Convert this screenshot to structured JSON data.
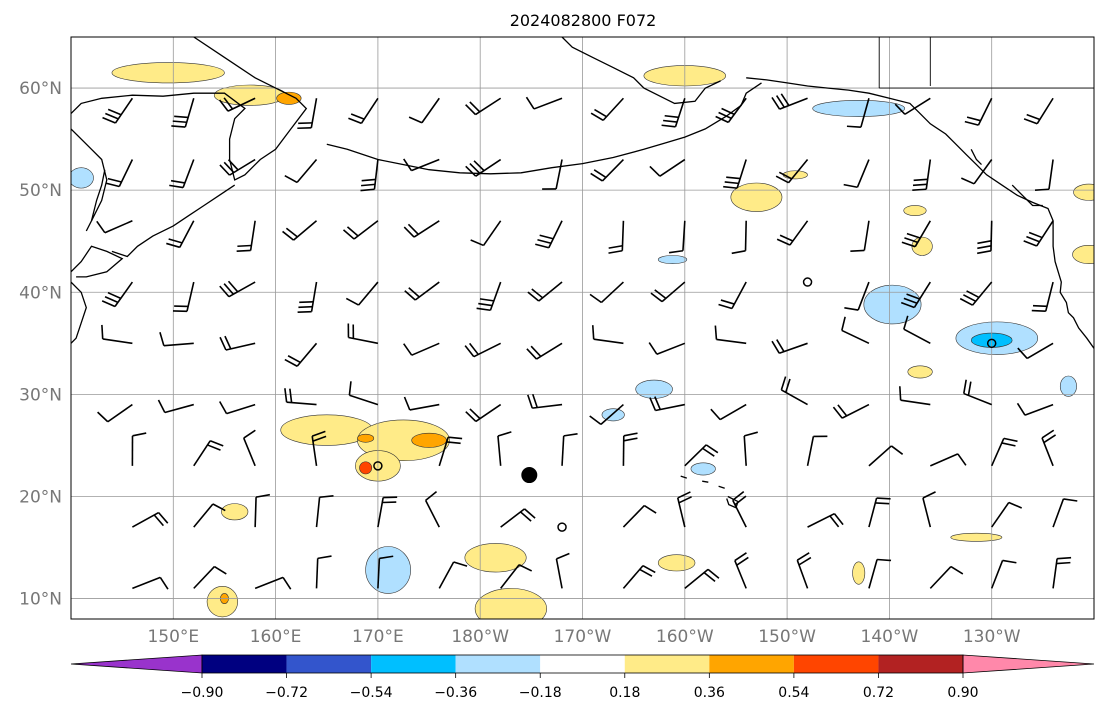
{
  "title": "2024082800 F072",
  "map": {
    "lon_range": [
      140,
      240
    ],
    "lat_range": [
      8,
      65
    ],
    "grid": true,
    "lat_ticks": [
      {
        "value": 10,
        "label": "10°N"
      },
      {
        "value": 20,
        "label": "20°N"
      },
      {
        "value": 30,
        "label": "30°N"
      },
      {
        "value": 40,
        "label": "40°N"
      },
      {
        "value": 50,
        "label": "50°N"
      },
      {
        "value": 60,
        "label": "60°N"
      }
    ],
    "lon_ticks": [
      {
        "value": 150,
        "label": "150°E"
      },
      {
        "value": 160,
        "label": "160°E"
      },
      {
        "value": 170,
        "label": "170°E"
      },
      {
        "value": 180,
        "label": "180°W"
      },
      {
        "value": 190,
        "label": "170°W"
      },
      {
        "value": 200,
        "label": "160°W"
      },
      {
        "value": 210,
        "label": "150°W"
      },
      {
        "value": 220,
        "label": "140°W"
      },
      {
        "value": 230,
        "label": "130°W"
      }
    ],
    "marker": {
      "lon": 184.8,
      "lat": 22.1
    }
  },
  "colorbar": {
    "levels": [
      "−0.90",
      "−0.72",
      "−0.54",
      "−0.36",
      "−0.18",
      "0.18",
      "0.36",
      "0.54",
      "0.72",
      "0.90"
    ],
    "colors": [
      "#9933cc",
      "#000080",
      "#3355cc",
      "#00bfff",
      "#b0e0ff",
      "#ffffff",
      "#ffeb88",
      "#ffa500",
      "#ff4500",
      "#b22222",
      "#ff88aa"
    ]
  },
  "anomaly_regions": [
    {
      "level": "pos1",
      "color": "#ffeb88",
      "lon": 149.5,
      "lat": 61.5,
      "rx": 5.5,
      "ry": 1.0
    },
    {
      "level": "pos1",
      "color": "#ffeb88",
      "lon": 157.5,
      "lat": 59.3,
      "rx": 3.5,
      "ry": 1.0
    },
    {
      "level": "pos2",
      "color": "#ffa500",
      "lon": 161.3,
      "lat": 59.0,
      "rx": 1.2,
      "ry": 0.6
    },
    {
      "level": "pos1",
      "color": "#ffeb88",
      "lon": 200.0,
      "lat": 61.2,
      "rx": 4.0,
      "ry": 1.0
    },
    {
      "level": "neg1",
      "color": "#b0e0ff",
      "lon": 217.0,
      "lat": 58.0,
      "rx": 4.5,
      "ry": 0.8
    },
    {
      "level": "neg1",
      "color": "#b0e0ff",
      "lon": 141.0,
      "lat": 51.2,
      "rx": 1.2,
      "ry": 1.0
    },
    {
      "level": "pos1",
      "color": "#ffeb88",
      "lon": 207.0,
      "lat": 49.3,
      "rx": 2.5,
      "ry": 1.4
    },
    {
      "level": "pos1",
      "color": "#ffeb88",
      "lon": 210.8,
      "lat": 51.5,
      "rx": 1.2,
      "ry": 0.4
    },
    {
      "level": "pos1",
      "color": "#ffeb88",
      "lon": 222.5,
      "lat": 48.0,
      "rx": 1.1,
      "ry": 0.5
    },
    {
      "level": "pos1",
      "color": "#ffeb88",
      "lon": 223.2,
      "lat": 44.5,
      "rx": 1.0,
      "ry": 0.9
    },
    {
      "level": "neg1",
      "color": "#b0e0ff",
      "lon": 198.8,
      "lat": 43.2,
      "rx": 1.4,
      "ry": 0.4
    },
    {
      "level": "neg1",
      "color": "#b0e0ff",
      "lon": 220.3,
      "lat": 38.8,
      "rx": 2.8,
      "ry": 1.9
    },
    {
      "level": "neg1",
      "color": "#b0e0ff",
      "lon": 230.5,
      "lat": 35.5,
      "rx": 4.0,
      "ry": 1.6
    },
    {
      "level": "neg2",
      "color": "#00bfff",
      "lon": 230.0,
      "lat": 35.3,
      "rx": 2.0,
      "ry": 0.7
    },
    {
      "level": "pos1",
      "color": "#ffeb88",
      "lon": 223.0,
      "lat": 32.2,
      "rx": 1.2,
      "ry": 0.6
    },
    {
      "level": "neg1",
      "color": "#b0e0ff",
      "lon": 237.5,
      "lat": 30.8,
      "rx": 0.8,
      "ry": 1.0
    },
    {
      "level": "neg1",
      "color": "#b0e0ff",
      "lon": 197.0,
      "lat": 30.5,
      "rx": 1.8,
      "ry": 0.9
    },
    {
      "level": "neg1",
      "color": "#b0e0ff",
      "lon": 193.0,
      "lat": 28.0,
      "rx": 1.1,
      "ry": 0.6
    },
    {
      "level": "pos1",
      "color": "#ffeb88",
      "lon": 165.0,
      "lat": 26.5,
      "rx": 4.5,
      "ry": 1.5
    },
    {
      "level": "pos1",
      "color": "#ffeb88",
      "lon": 172.5,
      "lat": 25.5,
      "rx": 4.5,
      "ry": 2.0
    },
    {
      "level": "pos1",
      "color": "#ffeb88",
      "lon": 170.0,
      "lat": 23.0,
      "rx": 2.2,
      "ry": 1.5
    },
    {
      "level": "pos2",
      "color": "#ffa500",
      "lon": 175.0,
      "lat": 25.5,
      "rx": 1.7,
      "ry": 0.7
    },
    {
      "level": "pos2",
      "color": "#ffa500",
      "lon": 168.8,
      "lat": 25.7,
      "rx": 0.8,
      "ry": 0.4
    },
    {
      "level": "pos3",
      "color": "#ff4500",
      "lon": 168.8,
      "lat": 22.8,
      "rx": 0.6,
      "ry": 0.6
    },
    {
      "level": "pos1",
      "color": "#ffeb88",
      "lon": 156.0,
      "lat": 18.5,
      "rx": 1.3,
      "ry": 0.8
    },
    {
      "level": "neg1",
      "color": "#b0e0ff",
      "lon": 171.0,
      "lat": 12.8,
      "rx": 2.2,
      "ry": 2.3
    },
    {
      "level": "pos1",
      "color": "#ffeb88",
      "lon": 181.5,
      "lat": 14.0,
      "rx": 3.0,
      "ry": 1.4
    },
    {
      "level": "pos1",
      "color": "#ffeb88",
      "lon": 183.0,
      "lat": 9.0,
      "rx": 3.5,
      "ry": 2.0
    },
    {
      "level": "pos1",
      "color": "#ffeb88",
      "lon": 154.8,
      "lat": 9.7,
      "rx": 1.5,
      "ry": 1.5
    },
    {
      "level": "pos2",
      "color": "#ffa500",
      "lon": 155.0,
      "lat": 10.0,
      "rx": 0.4,
      "ry": 0.5
    },
    {
      "level": "pos1",
      "color": "#ffeb88",
      "lon": 199.2,
      "lat": 13.5,
      "rx": 1.8,
      "ry": 0.8
    },
    {
      "level": "neg1",
      "color": "#b0e0ff",
      "lon": 201.8,
      "lat": 22.7,
      "rx": 1.2,
      "ry": 0.6
    },
    {
      "level": "pos1",
      "color": "#ffeb88",
      "lon": 228.5,
      "lat": 16.0,
      "rx": 2.5,
      "ry": 0.4
    },
    {
      "level": "pos1",
      "color": "#ffeb88",
      "lon": 217.0,
      "lat": 12.5,
      "rx": 0.6,
      "ry": 1.1
    },
    {
      "level": "pos1",
      "color": "#ffeb88",
      "lon": 239.5,
      "lat": 49.8,
      "rx": 1.5,
      "ry": 0.8
    },
    {
      "level": "pos1",
      "color": "#ffeb88",
      "lon": 239.5,
      "lat": 43.7,
      "rx": 1.6,
      "ry": 0.9
    }
  ]
}
